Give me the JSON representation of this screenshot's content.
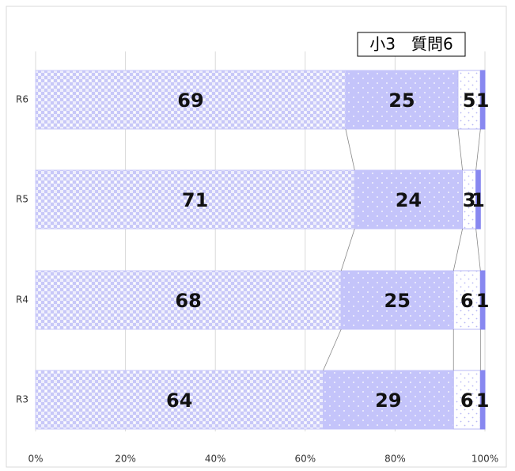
{
  "chart_data": {
    "type": "stacked_bar_horizontal",
    "title": "小3　質問6",
    "categories": [
      "R6",
      "R5",
      "R4",
      "R3"
    ],
    "series": [
      {
        "color": "#c8c8f8",
        "values": [
          69,
          71,
          68,
          64
        ]
      },
      {
        "color": "#c4c4fa",
        "values": [
          25,
          24,
          25,
          29
        ]
      },
      {
        "color": "#b8b8f4",
        "values": [
          5,
          3,
          6,
          6
        ]
      },
      {
        "color": "#8888f0",
        "values": [
          1,
          1,
          1,
          1
        ]
      }
    ],
    "xlim": [
      0,
      100
    ],
    "xticks": [
      {
        "value": 0,
        "label": "0%"
      },
      {
        "value": 20,
        "label": "20%"
      },
      {
        "value": 40,
        "label": "40%"
      },
      {
        "value": 60,
        "label": "60%"
      },
      {
        "value": 80,
        "label": "80%"
      },
      {
        "value": 100,
        "label": "100%"
      }
    ],
    "grid": true
  }
}
